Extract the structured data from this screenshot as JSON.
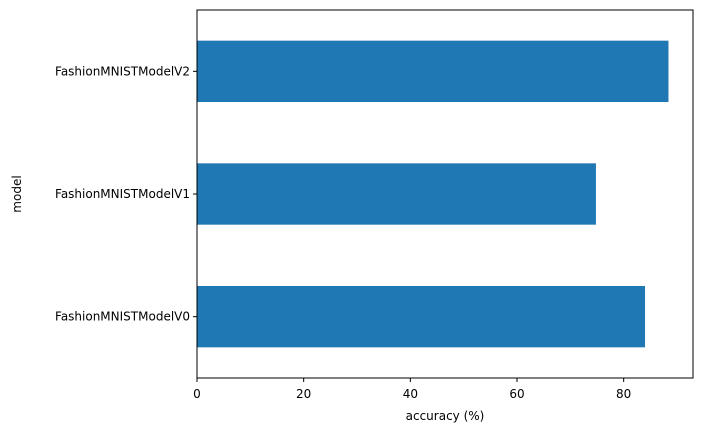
{
  "chart_data": {
    "type": "bar",
    "orientation": "horizontal",
    "categories": [
      "FashionMNISTModelV0",
      "FashionMNISTModelV1",
      "FashionMNISTModelV2"
    ],
    "values": [
      84.0,
      74.8,
      88.4
    ],
    "xlabel": "accuracy (%)",
    "ylabel": "model",
    "xlim": [
      0,
      93.0
    ],
    "xticks": [
      0,
      20,
      40,
      60,
      80
    ],
    "grid": false,
    "legend": "none",
    "bar_color": "#1f77b4"
  }
}
